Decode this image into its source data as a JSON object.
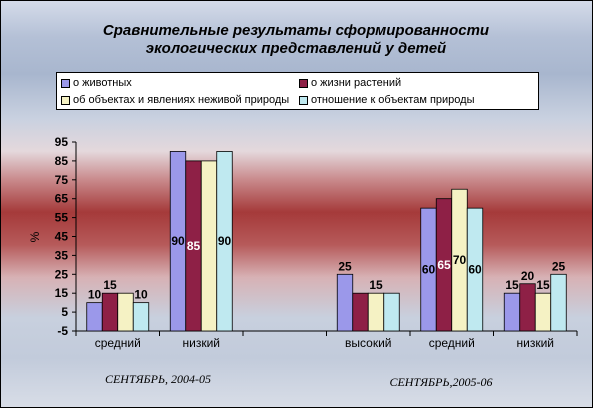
{
  "chart_data": {
    "type": "bar",
    "title": [
      "Сравнительные результаты сформированности",
      "экологических представлений у детей"
    ],
    "ylabel": "%",
    "ylim": [
      -5,
      95
    ],
    "yticks": [
      -5,
      5,
      15,
      25,
      35,
      45,
      55,
      65,
      75,
      85,
      95
    ],
    "legend_position": "top",
    "series": [
      {
        "name": "о животных",
        "color": "#9b98ea"
      },
      {
        "name": "о жизни растений",
        "color": "#8e2046"
      },
      {
        "name": "об объектах и явлениях неживой природы",
        "color": "#f5f2c4"
      },
      {
        "name": "отношение к объектам природы",
        "color": "#bfe9f0"
      }
    ],
    "categories": [
      {
        "label": "средний",
        "values": [
          10,
          15,
          15,
          10
        ],
        "labels": [
          "10",
          "15",
          "",
          "10"
        ]
      },
      {
        "label": "низкий",
        "values": [
          90,
          85,
          85,
          90
        ],
        "labels": [
          "90",
          "85",
          "",
          "90"
        ]
      },
      {
        "label": "",
        "values": [
          null,
          null,
          null,
          null
        ],
        "labels": [
          "",
          "",
          "",
          ""
        ]
      },
      {
        "label": "высокий",
        "values": [
          25,
          15,
          15,
          15
        ],
        "labels": [
          "25",
          "",
          "15",
          ""
        ]
      },
      {
        "label": "средний",
        "values": [
          60,
          65,
          70,
          60
        ],
        "labels": [
          "60",
          "65",
          "70",
          "60"
        ]
      },
      {
        "label": "низкий",
        "values": [
          15,
          20,
          15,
          25
        ],
        "labels": [
          "15",
          "20",
          "15",
          "25"
        ]
      }
    ],
    "periods": [
      "СЕНТЯБРЬ, 2004-05",
      "СЕНТЯБРЬ,2005-06"
    ]
  }
}
